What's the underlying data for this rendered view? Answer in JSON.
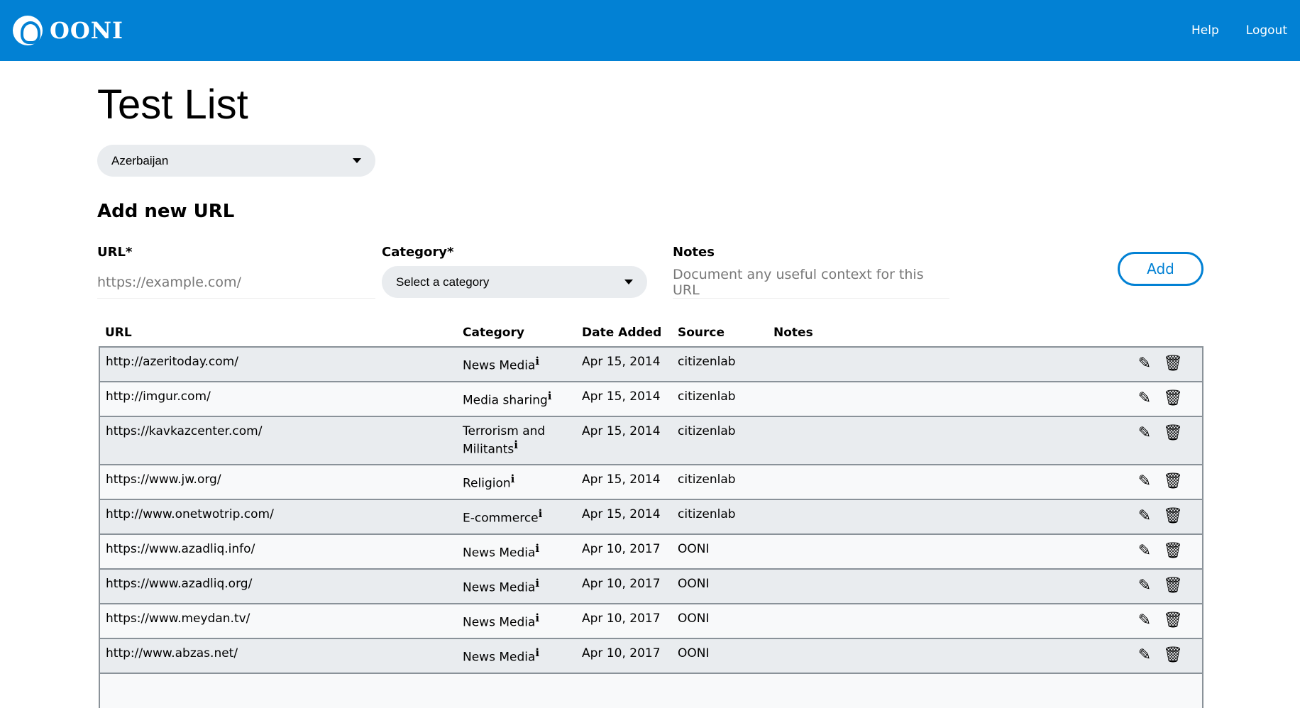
{
  "header": {
    "brand": "OONI",
    "nav": [
      "Help",
      "Logout"
    ]
  },
  "page": {
    "title": "Test List",
    "country": "Azerbaijan"
  },
  "form": {
    "heading": "Add new URL",
    "url_label": "URL*",
    "url_placeholder": "https://example.com/",
    "category_label": "Category*",
    "category_placeholder": "Select a category",
    "notes_label": "Notes",
    "notes_placeholder": "Document any useful context for this URL",
    "add_label": "Add"
  },
  "table": {
    "columns": [
      "URL",
      "Category",
      "Date Added",
      "Source",
      "Notes"
    ],
    "rows": [
      {
        "url": "http://azeritoday.com/",
        "category": "News Media",
        "date": "Apr 15, 2014",
        "source": "citizenlab",
        "notes": ""
      },
      {
        "url": "http://imgur.com/",
        "category": "Media sharing",
        "date": "Apr 15, 2014",
        "source": "citizenlab",
        "notes": ""
      },
      {
        "url": "https://kavkazcenter.com/",
        "category": "Terrorism and Militants",
        "date": "Apr 15, 2014",
        "source": "citizenlab",
        "notes": ""
      },
      {
        "url": "https://www.jw.org/",
        "category": "Religion",
        "date": "Apr 15, 2014",
        "source": "citizenlab",
        "notes": ""
      },
      {
        "url": "http://www.onetwotrip.com/",
        "category": "E-commerce",
        "date": "Apr 15, 2014",
        "source": "citizenlab",
        "notes": ""
      },
      {
        "url": "https://www.azadliq.info/",
        "category": "News Media",
        "date": "Apr 10, 2017",
        "source": "OONI",
        "notes": ""
      },
      {
        "url": "https://www.azadliq.org/",
        "category": "News Media",
        "date": "Apr 10, 2017",
        "source": "OONI",
        "notes": ""
      },
      {
        "url": "https://www.meydan.tv/",
        "category": "News Media",
        "date": "Apr 10, 2017",
        "source": "OONI",
        "notes": ""
      },
      {
        "url": "http://www.abzas.net/",
        "category": "News Media",
        "date": "Apr 10, 2017",
        "source": "OONI",
        "notes": ""
      },
      {
        "url": "",
        "category": "",
        "date": "",
        "source": "",
        "notes": ""
      }
    ],
    "info_glyph": "i",
    "edit_icon": "pencil-icon",
    "delete_icon": "trash-icon"
  },
  "colors": {
    "brand": "#0281d4",
    "row_odd": "#e9ecef",
    "row_even": "#f8f9fa"
  }
}
